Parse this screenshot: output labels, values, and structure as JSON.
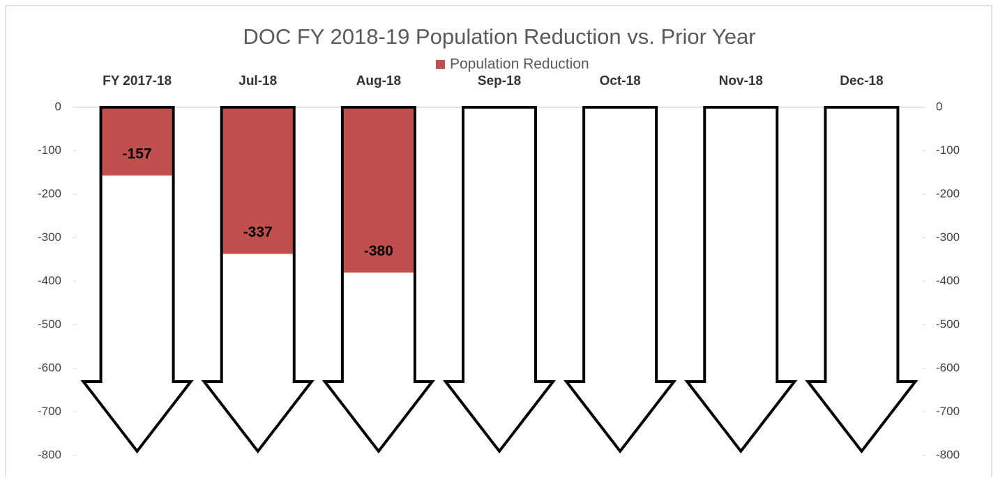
{
  "chart_data": {
    "type": "bar",
    "title": "DOC FY 2018-19 Population Reduction vs. Prior Year",
    "categories": [
      "FY 2017-18",
      "Jul-18",
      "Aug-18",
      "Sep-18",
      "Oct-18",
      "Nov-18",
      "Dec-18"
    ],
    "series": [
      {
        "name": "Population Reduction",
        "color": "#c0504d",
        "values": [
          -157,
          -337,
          -380,
          null,
          null,
          null,
          null
        ]
      }
    ],
    "ylim": [
      -800,
      0
    ],
    "yticks": [
      0,
      -100,
      -200,
      -300,
      -400,
      -500,
      -600,
      -700,
      -800
    ],
    "y2lim": [
      -800,
      0
    ],
    "y2ticks": [
      0,
      -100,
      -200,
      -300,
      -400,
      -500,
      -600,
      -700,
      -800
    ],
    "grid": false,
    "legend": "top"
  }
}
